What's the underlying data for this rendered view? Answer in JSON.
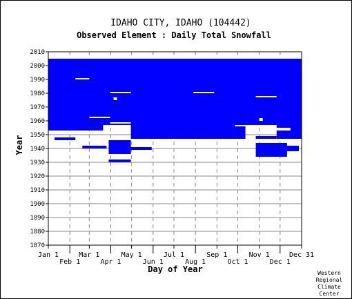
{
  "chart_data": {
    "type": "heatmap",
    "title": "IDAHO CITY, IDAHO   (104442)",
    "subtitle": "Observed Element : Daily Total Snowfall",
    "xlabel": "Day of Year",
    "ylabel": "Year",
    "x_ticks_upper": [
      "Jan 1",
      "Mar 1",
      "May 1",
      "Jul 1",
      "Sep 1",
      "Nov 1",
      "Dec 31"
    ],
    "x_ticks_lower": [
      "Feb 1",
      "Apr 1",
      "Jun 1",
      "Aug 1",
      "Oct 1",
      "Dec 1"
    ],
    "y_ticks": [
      "2010",
      "2000",
      "1990",
      "1980",
      "1970",
      "1960",
      "1950",
      "1940",
      "1930",
      "1920",
      "1910",
      "1900",
      "1890",
      "1880",
      "1870"
    ],
    "xlim_doy": [
      1,
      366
    ],
    "ylim": [
      1870,
      2010
    ],
    "grid": true,
    "fill_color": "#0000ff",
    "regions": [
      {
        "doy": [
          1,
          366
        ],
        "years": [
          1957,
          2005
        ]
      },
      {
        "doy": [
          120,
          285
        ],
        "years": [
          1947,
          1957
        ]
      },
      {
        "doy": [
          1,
          80
        ],
        "years": [
          1953,
          1957
        ]
      },
      {
        "doy": [
          330,
          366
        ],
        "years": [
          1947,
          1957
        ]
      },
      {
        "doy": [
          88,
          120
        ],
        "years": [
          1936,
          1946
        ]
      },
      {
        "doy": [
          88,
          120
        ],
        "years": [
          1930,
          1932
        ]
      },
      {
        "doy": [
          300,
          345
        ],
        "years": [
          1934,
          1944
        ]
      },
      {
        "doy": [
          345,
          362
        ],
        "years": [
          1938,
          1942
        ]
      },
      {
        "doy": [
          120,
          150
        ],
        "years": [
          1939,
          1941
        ]
      },
      {
        "doy": [
          10,
          40
        ],
        "years": [
          1946,
          1948
        ]
      },
      {
        "doy": [
          50,
          85
        ],
        "years": [
          1940,
          1942
        ]
      },
      {
        "doy": [
          300,
          330
        ],
        "years": [
          1947,
          1949
        ]
      }
    ],
    "gaps": [
      {
        "doy": [
          90,
          120
        ],
        "years": [
          1980,
          1981
        ]
      },
      {
        "doy": [
          210,
          240
        ],
        "years": [
          1980,
          1981
        ]
      },
      {
        "doy": [
          300,
          330
        ],
        "years": [
          1977,
          1978
        ]
      },
      {
        "doy": [
          60,
          90
        ],
        "years": [
          1962,
          1963
        ]
      },
      {
        "doy": [
          90,
          120
        ],
        "years": [
          1958,
          1959
        ]
      },
      {
        "doy": [
          270,
          300
        ],
        "years": [
          1956,
          1957
        ]
      },
      {
        "doy": [
          320,
          350
        ],
        "years": [
          1953,
          1955
        ]
      },
      {
        "doy": [
          40,
          60
        ],
        "years": [
          1990,
          1991
        ]
      },
      {
        "doy": [
          95,
          100
        ],
        "years": [
          1975,
          1977
        ]
      },
      {
        "doy": [
          305,
          310
        ],
        "years": [
          1960,
          1962
        ]
      }
    ],
    "credit": [
      "Western",
      "Regional",
      "Climate",
      "Center"
    ]
  }
}
